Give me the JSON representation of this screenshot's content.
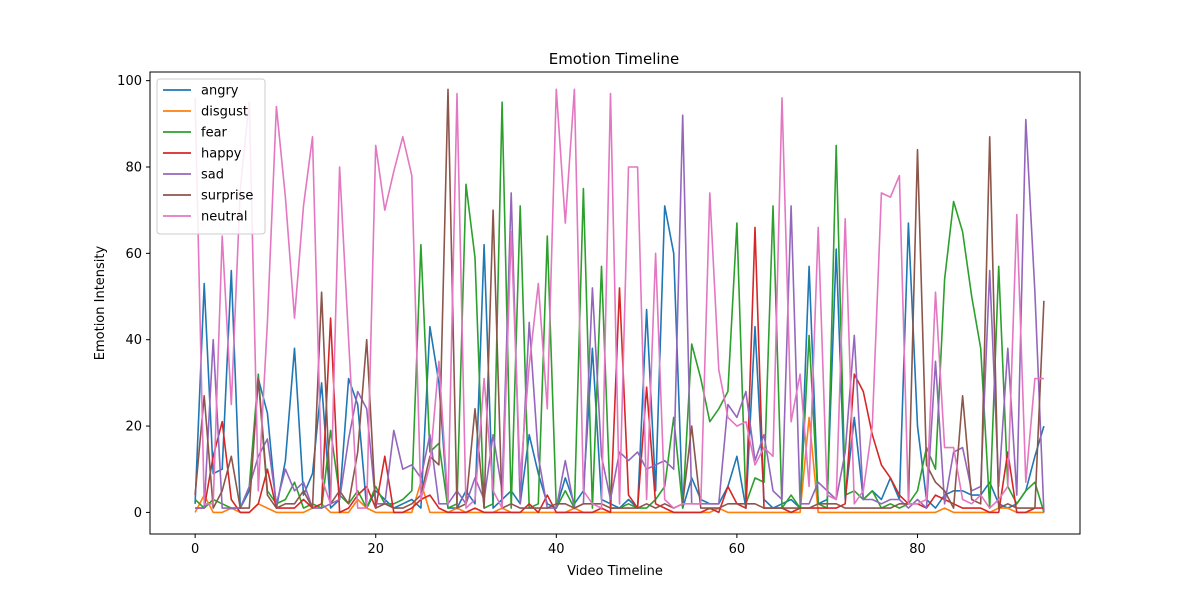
{
  "chart_data": {
    "type": "line",
    "title": "Emotion Timeline",
    "xlabel": "Video Timeline",
    "ylabel": "Emotion Intensity",
    "xlim": [
      -5,
      98
    ],
    "ylim": [
      -5,
      102
    ],
    "xticks": [
      0,
      20,
      40,
      60,
      80
    ],
    "yticks": [
      0,
      20,
      40,
      60,
      80,
      100
    ],
    "grid": false,
    "legend_position": "upper-left",
    "x": [
      0,
      1,
      2,
      3,
      4,
      5,
      6,
      7,
      8,
      9,
      10,
      11,
      12,
      13,
      14,
      15,
      16,
      17,
      18,
      19,
      20,
      21,
      22,
      23,
      24,
      25,
      26,
      27,
      28,
      29,
      30,
      31,
      32,
      33,
      34,
      35,
      36,
      37,
      38,
      39,
      40,
      41,
      42,
      43,
      44,
      45,
      46,
      47,
      48,
      49,
      50,
      51,
      52,
      53,
      54,
      55,
      56,
      57,
      58,
      59,
      60,
      61,
      62,
      63,
      64,
      65,
      66,
      67,
      68,
      69,
      70,
      71,
      72,
      73,
      74,
      75,
      76,
      77,
      78,
      79,
      80,
      81,
      82,
      83,
      84,
      85,
      86,
      87,
      88,
      89,
      90,
      91,
      92,
      93,
      94
    ],
    "series": [
      {
        "name": "angry",
        "color": "#1f77b4",
        "values": [
          2,
          53,
          9,
          10,
          56,
          1,
          5,
          31,
          23,
          1,
          12,
          38,
          4,
          9,
          30,
          1,
          3,
          31,
          25,
          1,
          5,
          3,
          1,
          2,
          3,
          1,
          43,
          30,
          1,
          1,
          5,
          2,
          62,
          1,
          3,
          5,
          2,
          18,
          9,
          2,
          1,
          8,
          2,
          5,
          38,
          3,
          2,
          1,
          3,
          1,
          47,
          5,
          71,
          60,
          1,
          8,
          3,
          2,
          2,
          6,
          13,
          1,
          43,
          3,
          1,
          2,
          3,
          1,
          57,
          2,
          3,
          61,
          3,
          22,
          3,
          5,
          3,
          8,
          3,
          67,
          20,
          3,
          1,
          4,
          5,
          5,
          4,
          4,
          7,
          2,
          1,
          2,
          5,
          13,
          20
        ]
      },
      {
        "name": "disgust",
        "color": "#ff7f0e",
        "values": [
          0,
          4,
          0,
          0,
          1,
          0,
          0,
          2,
          1,
          0,
          0,
          0,
          0,
          1,
          2,
          0,
          0,
          0,
          3,
          1,
          0,
          0,
          0,
          0,
          0,
          7,
          0,
          0,
          0,
          1,
          0,
          0,
          0,
          0,
          1,
          0,
          0,
          0,
          0,
          0,
          0,
          0,
          1,
          0,
          0,
          0,
          0,
          0,
          0,
          0,
          0,
          0,
          0,
          0,
          0,
          0,
          0,
          0,
          1,
          0,
          0,
          0,
          0,
          0,
          0,
          0,
          0,
          0,
          22,
          0,
          0,
          0,
          0,
          0,
          0,
          0,
          0,
          0,
          0,
          0,
          0,
          0,
          0,
          1,
          0,
          0,
          0,
          0,
          0,
          1,
          1,
          0,
          0,
          0,
          0
        ]
      },
      {
        "name": "fear",
        "color": "#2ca02c",
        "values": [
          3,
          1,
          3,
          2,
          1,
          1,
          6,
          32,
          5,
          2,
          3,
          7,
          1,
          2,
          1,
          19,
          4,
          2,
          5,
          1,
          6,
          2,
          2,
          3,
          5,
          62,
          14,
          16,
          1,
          2,
          76,
          59,
          1,
          2,
          95,
          1,
          71,
          1,
          2,
          64,
          1,
          5,
          1,
          75,
          1,
          57,
          1,
          1,
          2,
          1,
          1,
          3,
          6,
          22,
          1,
          39,
          31,
          21,
          24,
          28,
          67,
          2,
          8,
          7,
          71,
          1,
          4,
          1,
          41,
          2,
          1,
          85,
          4,
          5,
          3,
          5,
          1,
          2,
          1,
          2,
          5,
          15,
          10,
          54,
          72,
          65,
          50,
          38,
          1,
          57,
          6,
          2,
          5,
          7,
          0
        ]
      },
      {
        "name": "happy",
        "color": "#d62728",
        "values": [
          1,
          1,
          13,
          21,
          3,
          0,
          0,
          2,
          10,
          1,
          1,
          1,
          3,
          1,
          2,
          45,
          0,
          1,
          4,
          6,
          1,
          13,
          0,
          0,
          1,
          3,
          4,
          1,
          0,
          0,
          0,
          1,
          0,
          0,
          0,
          0,
          0,
          2,
          0,
          4,
          0,
          0,
          0,
          0,
          0,
          1,
          0,
          52,
          4,
          1,
          29,
          2,
          1,
          0,
          0,
          0,
          0,
          1,
          0,
          6,
          2,
          1,
          66,
          1,
          1,
          1,
          0,
          1,
          1,
          1,
          1,
          1,
          2,
          32,
          28,
          18,
          11,
          8,
          4,
          2,
          2,
          1,
          4,
          3,
          2,
          1,
          1,
          1,
          0,
          0,
          14,
          0,
          0,
          1,
          1
        ]
      },
      {
        "name": "sad",
        "color": "#9467bd",
        "values": [
          1,
          1,
          40,
          1,
          1,
          1,
          6,
          13,
          17,
          2,
          10,
          5,
          7,
          1,
          1,
          2,
          3,
          17,
          28,
          24,
          2,
          2,
          19,
          10,
          11,
          8,
          18,
          2,
          2,
          5,
          2,
          8,
          3,
          18,
          5,
          74,
          2,
          44,
          13,
          1,
          1,
          12,
          1,
          2,
          52,
          13,
          3,
          14,
          12,
          14,
          10,
          11,
          12,
          10,
          92,
          2,
          2,
          2,
          2,
          25,
          22,
          28,
          12,
          18,
          5,
          3,
          71,
          2,
          2,
          7,
          5,
          3,
          14,
          41,
          3,
          3,
          2,
          3,
          3,
          1,
          3,
          1,
          35,
          2,
          14,
          15,
          5,
          6,
          56,
          6,
          38,
          4,
          91,
          51,
          0
        ]
      },
      {
        "name": "surprise",
        "color": "#8c564b",
        "values": [
          4,
          27,
          1,
          5,
          13,
          1,
          1,
          31,
          4,
          1,
          2,
          2,
          5,
          1,
          51,
          2,
          5,
          2,
          14,
          40,
          1,
          2,
          1,
          1,
          2,
          4,
          13,
          11,
          98,
          1,
          2,
          24,
          1,
          70,
          1,
          2,
          1,
          1,
          1,
          1,
          2,
          2,
          1,
          2,
          2,
          2,
          1,
          1,
          1,
          1,
          2,
          1,
          2,
          1,
          2,
          20,
          1,
          1,
          1,
          2,
          2,
          2,
          2,
          1,
          1,
          1,
          1,
          1,
          1,
          2,
          2,
          2,
          1,
          1,
          1,
          1,
          1,
          1,
          2,
          2,
          84,
          11,
          7,
          5,
          1,
          27,
          3,
          2,
          87,
          1,
          2,
          1,
          1,
          1,
          49
        ]
      },
      {
        "name": "neutral",
        "color": "#e377c2",
        "values": [
          96,
          2,
          2,
          64,
          25,
          75,
          95,
          5,
          44,
          94,
          73,
          45,
          71,
          87,
          8,
          2,
          80,
          40,
          1,
          1,
          85,
          70,
          79,
          87,
          78,
          3,
          11,
          35,
          2,
          97,
          1,
          3,
          31,
          5,
          1,
          65,
          8,
          34,
          53,
          24,
          98,
          67,
          98,
          5,
          2,
          1,
          97,
          2,
          80,
          80,
          3,
          60,
          3,
          1,
          2,
          2,
          2,
          74,
          33,
          22,
          20,
          21,
          11,
          15,
          13,
          96,
          21,
          32,
          6,
          66,
          4,
          3,
          68,
          2,
          5,
          20,
          74,
          73,
          78,
          2,
          2,
          3,
          51,
          15,
          15,
          3,
          2,
          4,
          1,
          3,
          6,
          69,
          7,
          31,
          31
        ]
      }
    ]
  }
}
